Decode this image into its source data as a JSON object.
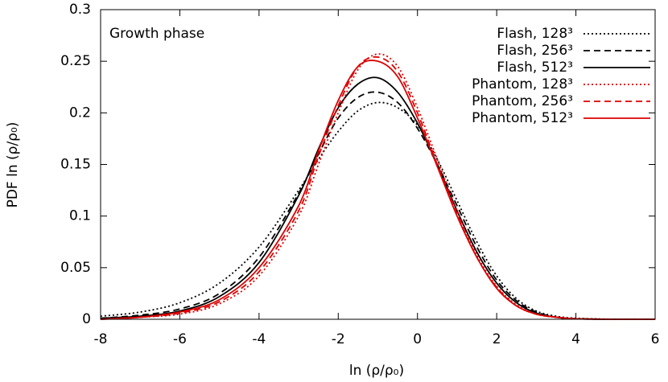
{
  "chart_data": {
    "type": "line",
    "xlabel": "ln (ρ/ρ₀)",
    "ylabel": "PDF ln (ρ/ρ₀)",
    "annotation": "Growth phase",
    "x": [
      -8,
      -7,
      -6,
      -5,
      -4,
      -3,
      -2.5,
      -2,
      -1.5,
      -1,
      -0.5,
      0,
      0.5,
      1,
      1.5,
      2,
      2.5,
      3,
      3.5,
      4,
      5,
      6
    ],
    "series": [
      {
        "name": "Flash, 128³",
        "color": "#000000",
        "dash": "dotted",
        "values": [
          0.003,
          0.007,
          0.016,
          0.035,
          0.07,
          0.125,
          0.155,
          0.182,
          0.202,
          0.21,
          0.205,
          0.188,
          0.155,
          0.115,
          0.075,
          0.042,
          0.02,
          0.008,
          0.003,
          0.001,
          0,
          0
        ]
      },
      {
        "name": "Flash, 256³",
        "color": "#000000",
        "dash": "dashed",
        "values": [
          0.001,
          0.004,
          0.01,
          0.025,
          0.06,
          0.122,
          0.16,
          0.195,
          0.215,
          0.22,
          0.21,
          0.185,
          0.15,
          0.11,
          0.07,
          0.038,
          0.018,
          0.007,
          0.002,
          0.0005,
          0,
          0
        ]
      },
      {
        "name": "Flash, 512³",
        "color": "#000000",
        "dash": "solid",
        "values": [
          0.001,
          0.003,
          0.008,
          0.022,
          0.055,
          0.12,
          0.165,
          0.205,
          0.228,
          0.234,
          0.22,
          0.19,
          0.15,
          0.105,
          0.065,
          0.035,
          0.016,
          0.006,
          0.002,
          0.0005,
          0,
          0
        ]
      },
      {
        "name": "Phantom, 128³",
        "color": "#dd0000",
        "dash": "dotted",
        "values": [
          0,
          0.002,
          0.005,
          0.015,
          0.042,
          0.1,
          0.15,
          0.2,
          0.242,
          0.257,
          0.245,
          0.205,
          0.155,
          0.105,
          0.062,
          0.032,
          0.014,
          0.005,
          0.002,
          0.0005,
          0,
          0
        ]
      },
      {
        "name": "Phantom, 256³",
        "color": "#dd0000",
        "dash": "dashed",
        "values": [
          0,
          0.002,
          0.006,
          0.017,
          0.046,
          0.105,
          0.158,
          0.207,
          0.245,
          0.254,
          0.24,
          0.2,
          0.15,
          0.102,
          0.06,
          0.031,
          0.013,
          0.005,
          0.002,
          0.0005,
          0,
          0
        ]
      },
      {
        "name": "Phantom, 512³",
        "color": "#dd0000",
        "dash": "solid",
        "values": [
          0,
          0.002,
          0.007,
          0.019,
          0.05,
          0.11,
          0.163,
          0.212,
          0.245,
          0.25,
          0.235,
          0.195,
          0.148,
          0.1,
          0.06,
          0.03,
          0.013,
          0.005,
          0.002,
          0.0005,
          0,
          0
        ]
      }
    ],
    "xlim": [
      -8,
      6
    ],
    "xticks": [
      -8,
      -6,
      -4,
      -2,
      0,
      2,
      4,
      6
    ],
    "ylim": [
      0,
      0.3
    ],
    "yticks": [
      0,
      0.05,
      0.1,
      0.15,
      0.2,
      0.25,
      0.3
    ],
    "legend": "upper right",
    "grid": false
  }
}
